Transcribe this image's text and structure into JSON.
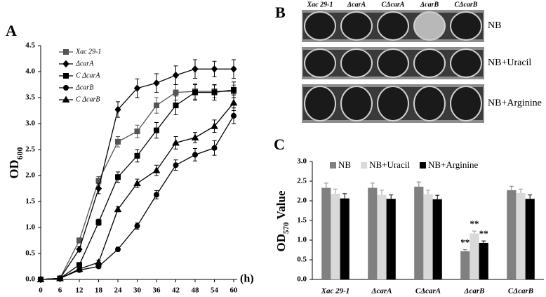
{
  "chart_data": [
    {
      "type": "line",
      "panel_label": "A",
      "ylabel": "OD",
      "ylabel_subscript": "600",
      "xlabel": "(h)",
      "x": [
        0,
        6,
        12,
        18,
        24,
        30,
        36,
        42,
        48,
        54,
        60
      ],
      "xlim": [
        0,
        60
      ],
      "xticks": [
        0,
        6,
        12,
        18,
        24,
        30,
        36,
        42,
        48,
        54,
        60
      ],
      "ylim": [
        0,
        4.5
      ],
      "yticks": [
        {
          "value": 0,
          "label": "0.0"
        },
        0.5,
        {
          "value": 1,
          "label": "1.0"
        },
        1.5,
        {
          "value": 2,
          "label": "2.0"
        },
        2.5,
        {
          "value": 3,
          "label": "3.0"
        },
        3.5,
        {
          "value": 4,
          "label": "4.0"
        },
        4.5
      ],
      "legend": "upper left",
      "series": [
        {
          "name": "Xac 29-1",
          "color": "#555555",
          "marker": "square",
          "values": [
            0,
            0.02,
            0.75,
            1.9,
            2.65,
            2.85,
            3.35,
            3.6,
            3.62,
            3.62,
            3.62
          ],
          "errors": [
            0.02,
            0.02,
            0.05,
            0.08,
            0.1,
            0.12,
            0.15,
            0.15,
            0.15,
            0.12,
            0.12
          ]
        },
        {
          "name": "ΔcarA",
          "color": "#000000",
          "marker": "diamond",
          "values": [
            0,
            0.02,
            0.58,
            1.75,
            3.27,
            3.68,
            3.78,
            3.93,
            4.05,
            4.05,
            4.05
          ],
          "errors": [
            0.02,
            0.02,
            0.05,
            0.1,
            0.15,
            0.18,
            0.18,
            0.18,
            0.18,
            0.15,
            0.18
          ]
        },
        {
          "name": "C ΔcarA",
          "color": "#000000",
          "marker": "square",
          "values": [
            0,
            0.02,
            0.28,
            1.1,
            1.97,
            2.38,
            2.87,
            3.35,
            3.6,
            3.6,
            3.65
          ],
          "errors": [
            0.02,
            0.02,
            0.04,
            0.06,
            0.1,
            0.12,
            0.15,
            0.18,
            0.15,
            0.15,
            0.15
          ]
        },
        {
          "name": "ΔcarB",
          "color": "#000000",
          "marker": "circle",
          "values": [
            0,
            0.02,
            0.18,
            0.25,
            0.58,
            1.03,
            1.63,
            2.2,
            2.4,
            2.53,
            3.15
          ],
          "errors": [
            0.02,
            0.02,
            0.03,
            0.03,
            0.04,
            0.06,
            0.08,
            0.1,
            0.12,
            0.14,
            0.15
          ]
        },
        {
          "name": "C ΔcarB",
          "color": "#000000",
          "marker": "triangle",
          "values": [
            0,
            0.02,
            0.2,
            0.33,
            1.35,
            1.85,
            2.1,
            2.63,
            2.73,
            2.95,
            3.4
          ],
          "errors": [
            0.02,
            0.02,
            0.03,
            0.04,
            0.05,
            0.08,
            0.1,
            0.12,
            0.1,
            0.12,
            0.15
          ]
        }
      ]
    },
    {
      "type": "bar",
      "panel_label": "C",
      "ylabel": "OD",
      "ylabel_subscript": "570",
      "ylabel_suffix": " Value",
      "categories": [
        "Xac 29-1",
        "ΔcarA",
        "CΔcarA",
        "ΔcarB",
        "CΔcarB"
      ],
      "ylim": [
        0,
        3
      ],
      "yticks": [
        {
          "value": 0,
          "label": "0.0"
        },
        0.5,
        {
          "value": 1,
          "label": "1.0"
        },
        1.5,
        {
          "value": 2,
          "label": "2.0"
        },
        2.5,
        {
          "value": 3,
          "label": "3.0"
        }
      ],
      "legend": "top",
      "series": [
        {
          "name": "NB",
          "color": "#808080",
          "values": [
            2.33,
            2.33,
            2.36,
            0.72,
            2.27
          ],
          "errors": [
            0.12,
            0.12,
            0.12,
            0.04,
            0.1
          ],
          "annotations": [
            null,
            null,
            null,
            "**",
            null
          ]
        },
        {
          "name": "NB+Uracil",
          "color": "#d9d9d9",
          "values": [
            2.18,
            2.15,
            2.17,
            1.17,
            2.2
          ],
          "errors": [
            0.12,
            0.12,
            0.1,
            0.06,
            0.1
          ],
          "annotations": [
            null,
            null,
            null,
            "**",
            null
          ]
        },
        {
          "name": "NB+Arginine",
          "color": "#000000",
          "values": [
            2.06,
            2.05,
            2.04,
            0.93,
            2.05
          ],
          "errors": [
            0.12,
            0.1,
            0.1,
            0.05,
            0.1
          ],
          "annotations": [
            null,
            null,
            null,
            "**",
            null
          ]
        }
      ]
    }
  ],
  "photo": {
    "panel_label": "B",
    "columns": [
      "Xac 29-1",
      "ΔcarA",
      "CΔcarA",
      "ΔcarB",
      "CΔcarB"
    ],
    "rows": [
      "NB",
      "NB+Uracil",
      "NB+Arginine"
    ]
  }
}
